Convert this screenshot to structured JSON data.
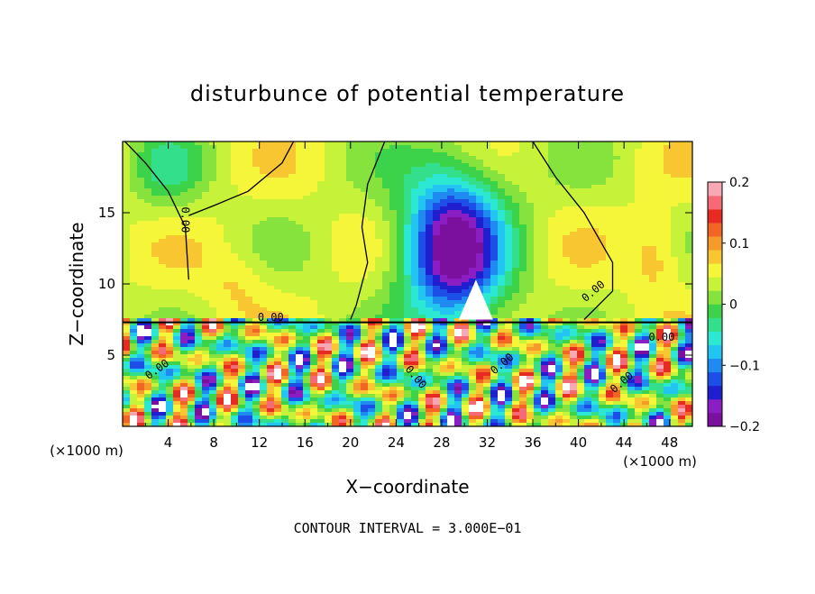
{
  "chart_data": {
    "type": "heatmap",
    "title": "disturbunce of potential temperature",
    "xlabel": "X−coordinate",
    "ylabel": "Z−coordinate",
    "x_unit": "(×1000 m)",
    "x_unit_right": "(×1000 m)",
    "footer": "CONTOUR INTERVAL = 3.000E−01",
    "xlim": [
      0,
      50
    ],
    "ylim": [
      0,
      20
    ],
    "x_ticks": [
      4,
      8,
      12,
      16,
      20,
      24,
      28,
      32,
      36,
      40,
      44,
      48
    ],
    "x_tick_labels": [
      "4",
      "8",
      "12",
      "16",
      "20",
      "24",
      "28",
      "32",
      "36",
      "40",
      "44",
      "48"
    ],
    "y_ticks": [
      5,
      10,
      15
    ],
    "y_tick_labels": [
      "5",
      "10",
      "15"
    ],
    "colorbar": {
      "range": [
        -0.2,
        0.2
      ],
      "tick_values": [
        0.2,
        0.1,
        0,
        -0.1,
        -0.2
      ],
      "tick_labels": [
        "0.2",
        "0.1",
        "0",
        "−0.1",
        "−0.2"
      ],
      "colors": [
        "#7b0f9e",
        "#8a1ec2",
        "#1f1fd0",
        "#1d4fe8",
        "#1f8bf0",
        "#22c5f2",
        "#2ce7d2",
        "#33df8a",
        "#3cd24a",
        "#86e23c",
        "#c7f23a",
        "#f5f53a",
        "#f7c631",
        "#f59a2b",
        "#f26524",
        "#e62c22",
        "#f56a75",
        "#f7a8b2"
      ]
    },
    "contour_labels": [
      "0.00",
      "0.00",
      "0.00",
      "0.00",
      "0.00",
      "0.00",
      "0.00",
      "0.00"
    ]
  }
}
